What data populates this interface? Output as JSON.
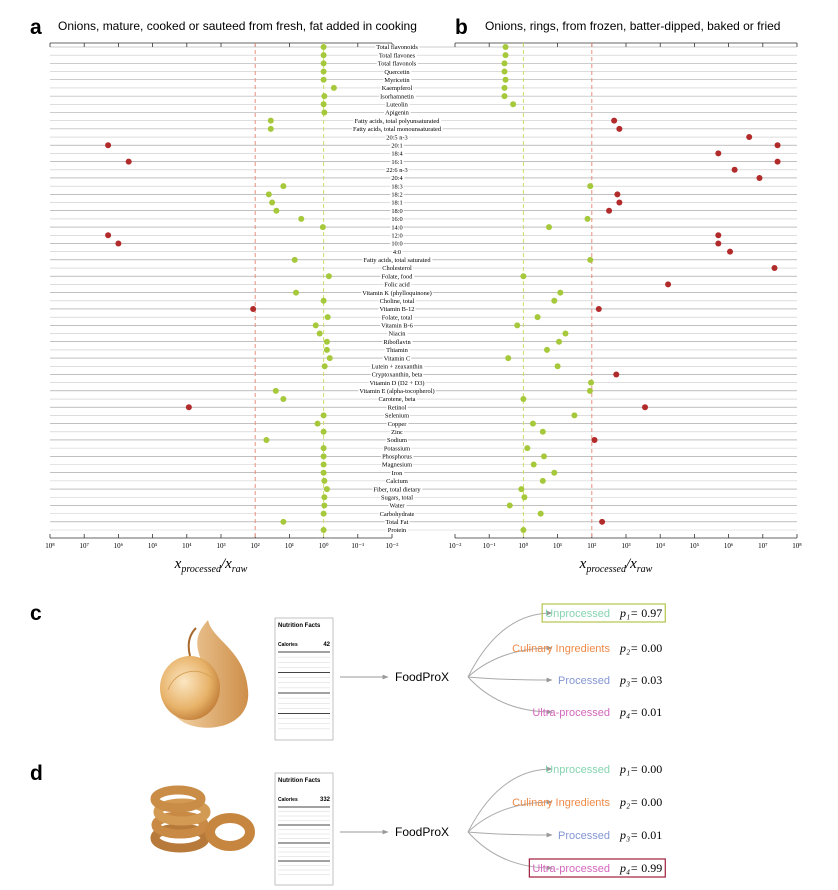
{
  "chart_data": {
    "type": "dot_pair",
    "categories": [
      "Total flavonoids",
      "Total flavones",
      "Total flavonols",
      "Quercetin",
      "Myricetin",
      "Kaempferol",
      "Isorhamnetin",
      "Luteolin",
      "Apigenin",
      "Fatty acids, total polyunsaturated",
      "Fatty acids, total monounsaturated",
      "20:5 n-3",
      "20:1",
      "18:4",
      "16:1",
      "22:6 n-3",
      "20:4",
      "18:3",
      "18:2",
      "18:1",
      "18:0",
      "16:0",
      "14:0",
      "12:0",
      "10:0",
      "4:0",
      "Fatty acids, total saturated",
      "Cholesterol",
      "Folate, food",
      "Folic acid",
      "Vitamin K (phylloquinone)",
      "Choline, total",
      "Vitamin B-12",
      "Folate, total",
      "Vitamin B-6",
      "Niacin",
      "Riboflavin",
      "Thiamin",
      "Vitamin C",
      "Lutein + zeaxanthin",
      "Cryptoxanthin, beta",
      "Vitamin D (D2 + D3)",
      "Vitamin E (alpha-tocopherol)",
      "Carotene, beta",
      "Retinol",
      "Selenium",
      "Copper",
      "Zinc",
      "Sodium",
      "Potassium",
      "Phosphorus",
      "Magnesium",
      "Iron",
      "Calcium",
      "Fiber, total dietary",
      "Sugars, total",
      "Water",
      "Carbohydrate",
      "Total Fat",
      "Protein"
    ],
    "log_x": true,
    "within_color": "#a6c83b",
    "outside_color": "#b22b2b",
    "reference_lines": [
      {
        "value": 1,
        "color": "#cfdc6e"
      },
      {
        "value": 100,
        "color": "#e6907c"
      }
    ],
    "panels": [
      {
        "label": "a",
        "title": "Onions, mature, cooked or sauteed from fresh, fat added in cooking",
        "xlabel": [
          "x",
          "processed",
          "/x",
          "raw"
        ],
        "xlim": [
          100000000,
          0.01
        ],
        "xticks": [
          {
            "value": 100000000,
            "label": "10⁸"
          },
          {
            "value": 10000000,
            "label": "10⁷"
          },
          {
            "value": 1000000,
            "label": "10⁶"
          },
          {
            "value": 100000,
            "label": "10⁵"
          },
          {
            "value": 10000,
            "label": "10⁴"
          },
          {
            "value": 1000,
            "label": "10³"
          },
          {
            "value": 100,
            "label": "10²"
          },
          {
            "value": 10,
            "label": "10¹"
          },
          {
            "value": 1,
            "label": "10⁰"
          },
          {
            "value": 0.1,
            "label": "10⁻¹"
          },
          {
            "value": 0.01,
            "label": "10⁻²"
          }
        ],
        "values": [
          1,
          1,
          1,
          1,
          1,
          0.5,
          0.95,
          1,
          0.95,
          35,
          35,
          null,
          2000000,
          null,
          500000,
          null,
          null,
          15,
          40,
          32,
          24,
          4.5,
          1.05,
          2000000,
          1000000,
          null,
          7,
          null,
          0.7,
          null,
          6.4,
          1,
          115,
          0.76,
          1.7,
          1.3,
          0.8,
          0.8,
          0.66,
          0.93,
          null,
          null,
          25,
          15,
          8700,
          1,
          1.5,
          1,
          47,
          1,
          1,
          1,
          1,
          0.95,
          0.8,
          0.95,
          0.95,
          1,
          15,
          1
        ]
      },
      {
        "label": "b",
        "title": "Onions, rings, from frozen, batter-dipped, baked or fried",
        "xlabel": [
          "x",
          "processed",
          "/x",
          "raw"
        ],
        "xlim": [
          0.01,
          100000000
        ],
        "xticks": [
          {
            "value": 0.01,
            "label": "10⁻²"
          },
          {
            "value": 0.1,
            "label": "10⁻¹"
          },
          {
            "value": 1,
            "label": "10⁰"
          },
          {
            "value": 10,
            "label": "10¹"
          },
          {
            "value": 100,
            "label": "10²"
          },
          {
            "value": 1000,
            "label": "10³"
          },
          {
            "value": 10000,
            "label": "10⁴"
          },
          {
            "value": 100000,
            "label": "10⁵"
          },
          {
            "value": 1000000,
            "label": "10⁶"
          },
          {
            "value": 10000000,
            "label": "10⁷"
          },
          {
            "value": 100000000,
            "label": "10⁸"
          }
        ],
        "values": [
          0.3,
          0.3,
          0.28,
          0.28,
          0.3,
          0.28,
          0.28,
          0.5,
          null,
          450,
          640,
          4000000,
          27000000,
          500000,
          27000000,
          1500000,
          8000000,
          90,
          560,
          640,
          320,
          75,
          5.6,
          500000,
          500000,
          1100000,
          90,
          22000000,
          1,
          17000,
          12,
          8,
          160,
          2.6,
          0.66,
          17,
          11,
          4.9,
          0.36,
          10,
          520,
          95,
          88,
          1,
          3600,
          31,
          1.9,
          3.7,
          120,
          1.3,
          4,
          2,
          8,
          3.7,
          0.87,
          1.07,
          0.4,
          3.2,
          200,
          1
        ]
      }
    ]
  },
  "examples": [
    {
      "label": "c",
      "nutrition": {
        "title": "Nutrition Facts",
        "calories_label": "Calories",
        "calories": "42"
      },
      "model": "FoodProX",
      "classes": [
        {
          "name": "Unprocessed",
          "color": "#86d4b0",
          "symbol": "p₁=",
          "probability": "0.97",
          "highlight": "#b5c44a"
        },
        {
          "name": "Culinary Ingredients",
          "color": "#ef8a48",
          "symbol": "p₂=",
          "probability": "0.00"
        },
        {
          "name": "Processed",
          "color": "#8597d4",
          "symbol": "p₃=",
          "probability": "0.03"
        },
        {
          "name": "Ultra-processed",
          "color": "#d468bd",
          "symbol": "p₄=",
          "probability": "0.01"
        }
      ]
    },
    {
      "label": "d",
      "nutrition": {
        "title": "Nutrition Facts",
        "calories_label": "Calories",
        "calories": "332"
      },
      "model": "FoodProX",
      "classes": [
        {
          "name": "Unprocessed",
          "color": "#86d4b0",
          "symbol": "p₁=",
          "probability": "0.00"
        },
        {
          "name": "Culinary Ingredients",
          "color": "#ef8a48",
          "symbol": "p₂=",
          "probability": "0.00"
        },
        {
          "name": "Processed",
          "color": "#8597d4",
          "symbol": "p₃=",
          "probability": "0.01"
        },
        {
          "name": "Ultra-processed",
          "color": "#d468bd",
          "symbol": "p₄=",
          "probability": "0.99",
          "highlight": "#9e1f3c"
        }
      ]
    }
  ]
}
